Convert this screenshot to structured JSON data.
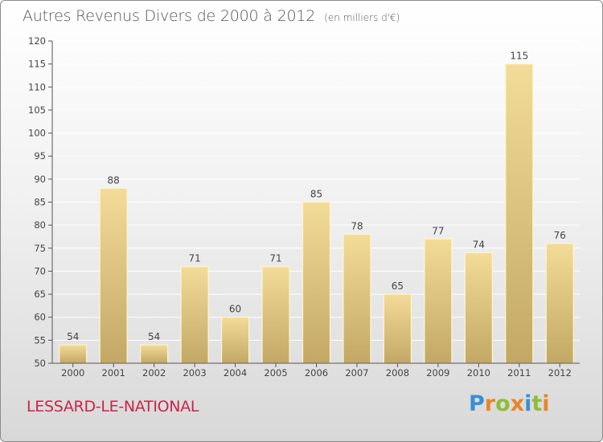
{
  "title": "Autres Revenus Divers de 2000 à 2012",
  "subtitle": "(en milliers d'€)",
  "commune": "LESSARD-LE-NATIONAL",
  "brand": {
    "text": "Proxiti",
    "letters": [
      {
        "ch": "P",
        "color": "#3b8fd3"
      },
      {
        "ch": "r",
        "color": "#e8862a"
      },
      {
        "ch": "o",
        "color": "#8fbd3a"
      },
      {
        "ch": "x",
        "color": "#e8862a"
      },
      {
        "ch": "i",
        "color": "#3b8fd3"
      },
      {
        "ch": "t",
        "color": "#8fbd3a"
      },
      {
        "ch": "i",
        "color": "#e8862a"
      }
    ]
  },
  "colors": {
    "bar_light": "#f3dc98",
    "bar_dark": "#c2a864",
    "bar_edge": "#fff5cf",
    "axis": "#555555",
    "grid": "#ffffff",
    "text": "#444444",
    "commune": "#c8254a"
  },
  "chart_data": {
    "type": "bar",
    "title": "Autres Revenus Divers de 2000 à 2012",
    "subtitle": "(en milliers d'€)",
    "categories": [
      "2000",
      "2001",
      "2002",
      "2003",
      "2004",
      "2005",
      "2006",
      "2007",
      "2008",
      "2009",
      "2010",
      "2011",
      "2012"
    ],
    "values": [
      54,
      88,
      54,
      71,
      60,
      71,
      85,
      78,
      65,
      77,
      74,
      115,
      76
    ],
    "ylim": [
      50,
      120
    ],
    "yticks": [
      50,
      55,
      60,
      65,
      70,
      75,
      80,
      85,
      90,
      95,
      100,
      105,
      110,
      115,
      120
    ],
    "grid": true,
    "data_labels": true,
    "xlabel": "",
    "ylabel": ""
  }
}
